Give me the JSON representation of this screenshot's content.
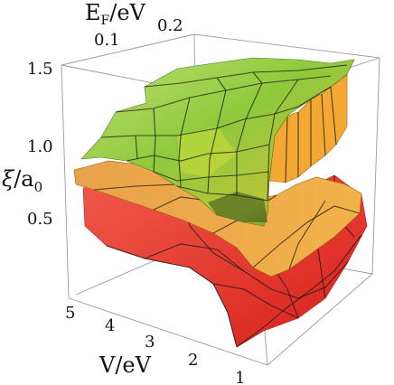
{
  "chart_data": {
    "type": "surface3d",
    "x_axis": {
      "label_main": "E",
      "label_sub": "F",
      "label_rest": "/eV",
      "ticks": [
        "0.1",
        "0.2"
      ]
    },
    "y_axis": {
      "label": "V/eV",
      "ticks": [
        "5",
        "4",
        "3",
        "2",
        "1"
      ]
    },
    "z_axis": {
      "label_main": "ξ",
      "label_rest": "/a",
      "label_sub": "0",
      "ticks": [
        "1.5",
        "1.0",
        "0.5"
      ]
    },
    "series": [
      {
        "color": "#8ccf3a"
      },
      {
        "color": "#f0a030"
      },
      {
        "color": "#e8322a"
      }
    ]
  }
}
